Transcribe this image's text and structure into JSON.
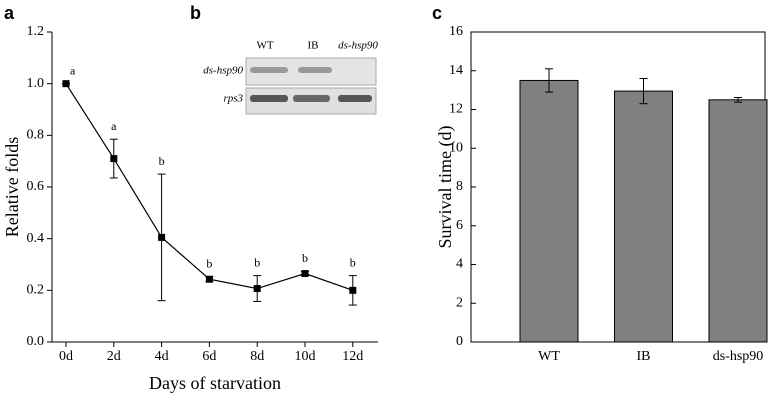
{
  "chart_data": [
    {
      "type": "line",
      "panel_label": "a",
      "x_label": "Days of starvation",
      "y_label": "Relative folds",
      "categories": [
        "0d",
        "2d",
        "4d",
        "6d",
        "8d",
        "10d",
        "12d"
      ],
      "values": [
        1.0,
        0.71,
        0.405,
        0.243,
        0.207,
        0.265,
        0.2
      ],
      "errors": [
        0,
        0.075,
        0.245,
        0.01,
        0.05,
        0.008,
        0.057
      ],
      "annotations": [
        "a",
        "a",
        "b",
        "b",
        "b",
        "b",
        "b"
      ],
      "color": "#000000",
      "ylim": [
        0,
        1.2
      ],
      "yticks": [
        {
          "value": 0,
          "label": "0.0"
        },
        0.2,
        0.4,
        0.6,
        0.8,
        {
          "value": 1,
          "label": "1.0"
        },
        1.2
      ]
    },
    {
      "type": "bar",
      "panel_label": "c",
      "y_label": "Survival time (d)",
      "categories": [
        "WT",
        "IB",
        "ds-hsp90"
      ],
      "values": [
        13.5,
        12.95,
        12.5
      ],
      "errors": [
        0.6,
        0.65,
        0.12
      ],
      "color": "#808080",
      "ylim": [
        0,
        16
      ],
      "yticks": [
        0,
        2,
        4,
        6,
        8,
        10,
        12,
        14,
        16
      ]
    }
  ],
  "gel": {
    "panel_label": "b",
    "lanes": [
      "WT",
      "IB",
      "ds-hsp90"
    ],
    "genes": [
      "ds-hsp90",
      "rps3"
    ]
  }
}
